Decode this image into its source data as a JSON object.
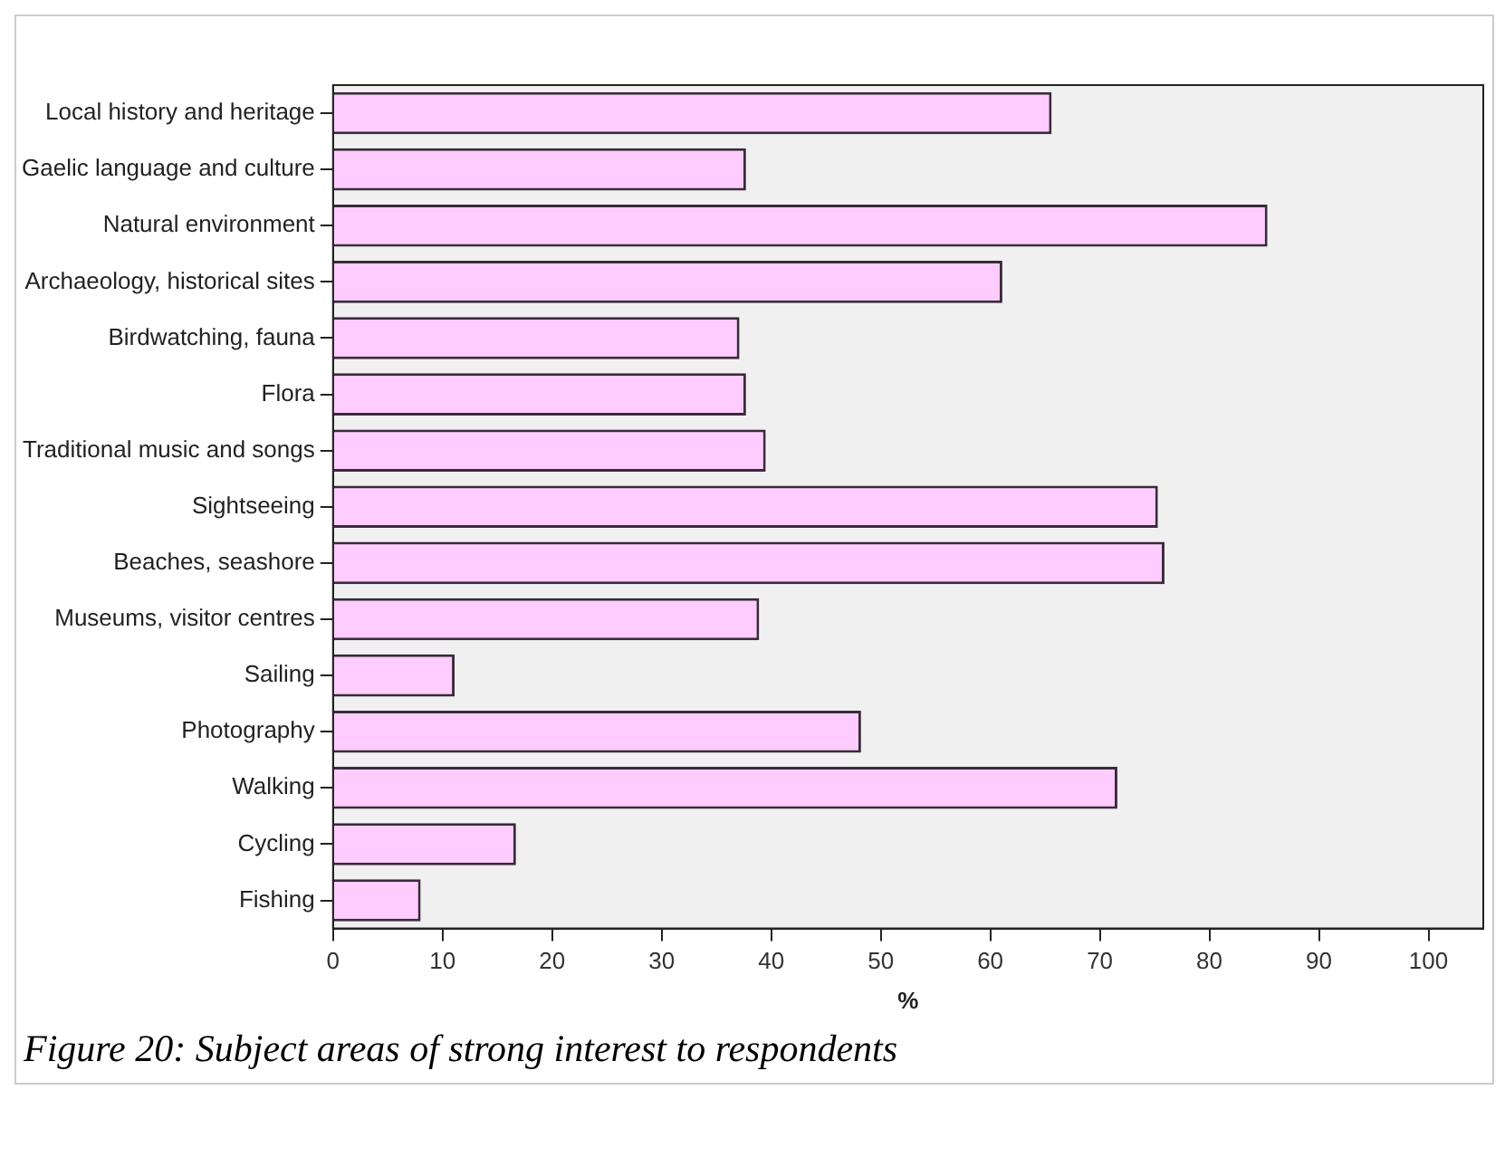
{
  "chart_data": {
    "type": "bar",
    "orientation": "horizontal",
    "xlabel": "%",
    "categories": [
      "Local history and heritage",
      "Gaelic language and culture",
      "Natural environment",
      "Archaeology, historical sites",
      "Birdwatching, fauna",
      "Flora",
      "Traditional music and songs",
      "Sightseeing",
      "Beaches, seashore",
      "Museums, visitor centres",
      "Sailing",
      "Photography",
      "Walking",
      "Cycling",
      "Fishing"
    ],
    "values": [
      65.6,
      37.7,
      85.3,
      61.1,
      37.1,
      37.7,
      39.5,
      75.3,
      75.9,
      38.9,
      11.1,
      48.2,
      71.6,
      16.7,
      8.0
    ],
    "color": "#ffccff",
    "xlim": [
      0,
      105
    ],
    "xticks": [
      0,
      10,
      20,
      30,
      40,
      50,
      60,
      70,
      80,
      90,
      100
    ],
    "grid": false,
    "legend": false,
    "annotations": [
      "Figure 20: Subject areas of strong interest to respondents"
    ]
  }
}
